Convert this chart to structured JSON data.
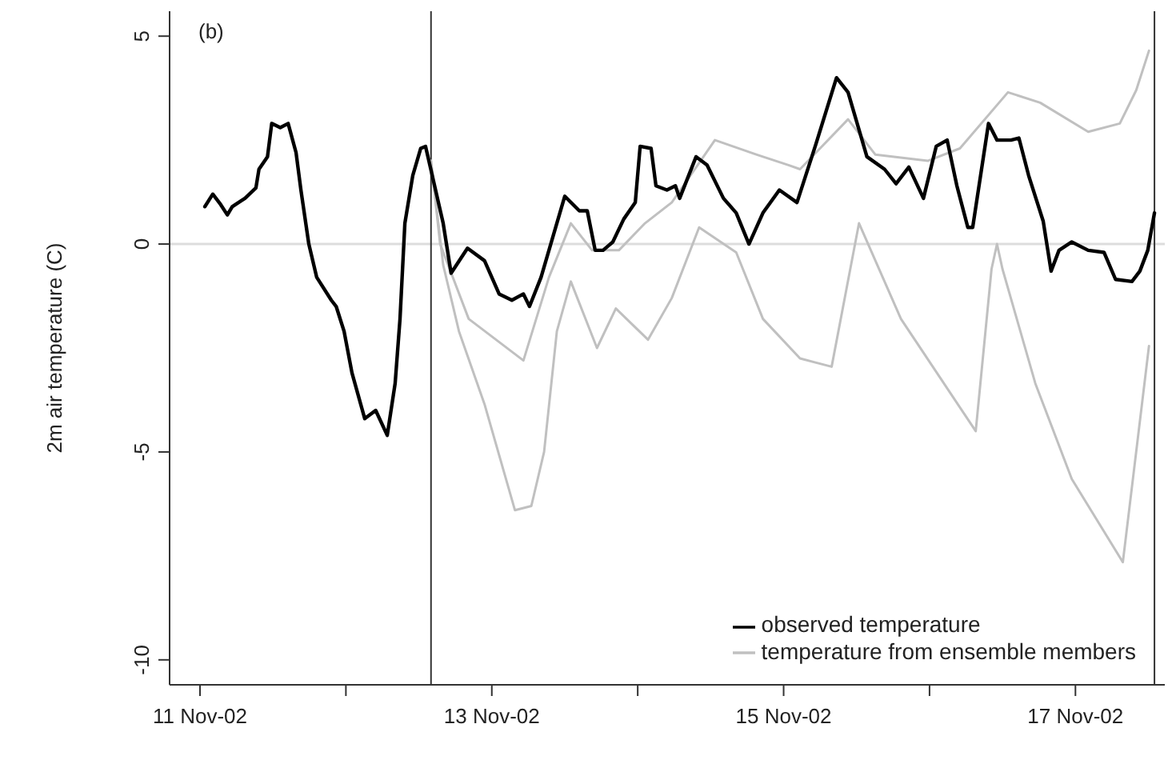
{
  "chart_data": {
    "type": "line",
    "ylabel": "2m air temperature (C)",
    "annotations": [
      "(b)"
    ],
    "xlim": [
      "--11-10T19:00",
      "--11-17T14:42"
    ],
    "ylim": [
      -10.6,
      5.6
    ],
    "xticks": [
      {
        "value": "--11-11",
        "label": "11 Nov-02"
      },
      {
        "value": "--11-12",
        "label": null
      },
      {
        "value": "--11-13",
        "label": "13 Nov-02"
      },
      {
        "value": "--11-14",
        "label": null
      },
      {
        "value": "--11-15",
        "label": "15 Nov-02"
      },
      {
        "value": "--11-16",
        "label": null
      },
      {
        "value": "--11-17",
        "label": "17 Nov-02"
      }
    ],
    "yticks": [
      -10,
      -5,
      0,
      5
    ],
    "grid": false,
    "legend": "bottom right",
    "marker": "none",
    "line_style": "solid",
    "ref_lines": [
      {
        "axis": "y",
        "value": 0,
        "color": "#dddddd"
      },
      {
        "axis": "x",
        "value": "--11-12T14:00",
        "color": "#333333"
      },
      {
        "axis": "x",
        "value": "--11-17T13:00",
        "color": "#333333"
      }
    ],
    "series": [
      {
        "name": "observed temperature",
        "color": "#000000",
        "x": [
          "--11-11T00:48",
          "--11-11T02:06",
          "--11-11T03:24",
          "--11-11T04:30",
          "--11-11T05:18",
          "--11-11T07:24",
          "--11-11T09:12",
          "--11-11T09:42",
          "--11-11T11:06",
          "--11-11T11:48",
          "--11-11T13:12",
          "--11-11T14:30",
          "--11-11T15:48",
          "--11-11T16:36",
          "--11-11T17:54",
          "--11-11T19:12",
          "--11-11T21:36",
          "--11-11T22:24",
          "--11-11T23:42",
          "--11-12T01:00",
          "--11-12T03:06",
          "--11-12T04:54",
          "--11-12T06:48",
          "--11-12T08:06",
          "--11-12T08:54",
          "--11-12T09:42",
          "--11-12T11:00",
          "--11-12T12:18",
          "--11-12T13:06",
          "--11-12T14:12",
          "--11-12T16:00",
          "--11-12T17:18",
          "--11-12T20:00",
          "--11-12T22:48",
          "--11-13T01:12",
          "--11-13T03:18",
          "--11-13T05:12",
          "--11-13T06:12",
          "--11-13T08:06",
          "--11-13T12:00",
          "--11-13T14:24",
          "--11-13T15:42",
          "--11-13T17:00",
          "--11-13T18:18",
          "--11-13T19:54",
          "--11-13T21:42",
          "--11-13T23:36",
          "--11-14T00:24",
          "--11-14T02:12",
          "--11-14T03:00",
          "--11-14T04:48",
          "--11-14T06:12",
          "--11-14T06:54",
          "--11-14T09:36",
          "--11-14T11:24",
          "--11-14T14:06",
          "--11-14T16:12",
          "--11-14T18:18",
          "--11-14T20:36",
          "--11-14T23:18",
          "--11-15T02:12",
          "--11-15T05:18",
          "--11-15T08:42",
          "--11-15T10:36",
          "--11-15T13:42",
          "--11-15T16:36",
          "--11-15T18:30",
          "--11-15T20:36",
          "--11-15T23:00",
          "--11-16T01:06",
          "--11-16T02:54",
          "--11-16T04:30",
          "--11-16T06:18",
          "--11-16T07:06",
          "--11-16T09:42",
          "--11-16T11:06",
          "--11-16T13:24",
          "--11-16T14:42",
          "--11-16T16:18",
          "--11-16T18:42",
          "--11-16T20:00",
          "--11-16T21:18",
          "--11-16T23:24",
          "--11-17T02:06",
          "--11-17T04:42",
          "--11-17T06:36",
          "--11-17T09:18",
          "--11-17T10:36",
          "--11-17T11:54",
          "--11-17T13:00"
        ],
        "values": [
          0.9,
          1.2,
          0.95,
          0.7,
          0.9,
          1.1,
          1.35,
          1.8,
          2.1,
          2.9,
          2.8,
          2.9,
          2.2,
          1.3,
          0,
          -0.8,
          -1.35,
          -1.5,
          -2.1,
          -3.1,
          -4.2,
          -4.0,
          -4.6,
          -3.35,
          -1.8,
          0.5,
          1.65,
          2.3,
          2.35,
          1.65,
          0.5,
          -0.7,
          -0.1,
          -0.4,
          -1.2,
          -1.35,
          -1.2,
          -1.5,
          -0.8,
          1.15,
          0.8,
          0.8,
          -0.15,
          -0.15,
          0.05,
          0.6,
          1.0,
          2.35,
          2.3,
          1.4,
          1.3,
          1.4,
          1.1,
          2.1,
          1.9,
          1.1,
          0.75,
          0,
          0.75,
          1.3,
          1.0,
          2.4,
          4.0,
          3.65,
          2.1,
          1.8,
          1.45,
          1.85,
          1.1,
          2.35,
          2.5,
          1.4,
          0.4,
          0.4,
          2.9,
          2.5,
          2.5,
          2.55,
          1.65,
          0.55,
          -0.65,
          -0.15,
          0.05,
          -0.15,
          -0.2,
          -0.85,
          -0.9,
          -0.65,
          -0.15,
          0.75
        ]
      },
      {
        "name": "temperature from ensemble members",
        "color": "#c0c0c0",
        "x": [
          "--11-12T14:00",
          "--11-12T15:30",
          "--11-12T20:12",
          "--11-13T05:12",
          "--11-13T09:24",
          "--11-13T13:00",
          "--11-13T16:30",
          "--11-13T20:54",
          "--11-14T01:12",
          "--11-14T05:36",
          "--11-14T12:42",
          "--11-14T19:36",
          "--11-15T00:48",
          "--11-15T02:42",
          "--11-15T10:36",
          "--11-15T15:06",
          "--11-15T23:42",
          "--11-16T05:00",
          "--11-16T12:54",
          "--11-16T18:12",
          "--11-17T02:06",
          "--11-17T07:18",
          "--11-17T10:00",
          "--11-17T12:06"
        ],
        "values": [
          2.0,
          0,
          -1.8,
          -2.8,
          -0.8,
          0.5,
          -0.15,
          -0.15,
          0.5,
          1.0,
          2.5,
          2.15,
          1.9,
          1.8,
          3.0,
          2.15,
          2.0,
          2.3,
          3.65,
          3.4,
          2.7,
          2.9,
          3.7,
          4.65
        ]
      },
      {
        "color": "#c0c0c0",
        "x": [
          "--11-12T14:00",
          "--11-12T16:00",
          "--11-12T18:36",
          "--11-12T22:48",
          "--11-13T03:48",
          "--11-13T06:30",
          "--11-13T08:36",
          "--11-13T10:42",
          "--11-13T13:00",
          "--11-13T17:18",
          "--11-13T20:24",
          "--11-14T01:42",
          "--11-14T05:36",
          "--11-14T10:06",
          "--11-14T16:12",
          "--11-14T20:36",
          "--11-15T02:42",
          "--11-15T07:54",
          "--11-15T12:24",
          "--11-15T19:18",
          "--11-16T07:36",
          "--11-16T10:12",
          "--11-16T11:06",
          "--11-16T12:00",
          "--11-16T17:24",
          "--11-16T23:24",
          "--11-17T07:48",
          "--11-17T12:06"
        ],
        "values": [
          2.0,
          -0.5,
          -2.1,
          -3.85,
          -6.4,
          -6.3,
          -5.0,
          -2.1,
          -0.9,
          -2.5,
          -1.55,
          -2.3,
          -1.3,
          0.4,
          -0.2,
          -1.8,
          -2.75,
          -2.95,
          0.5,
          -1.8,
          -4.5,
          -0.6,
          0,
          -0.6,
          -3.35,
          -5.65,
          -7.65,
          -2.45
        ]
      }
    ]
  }
}
